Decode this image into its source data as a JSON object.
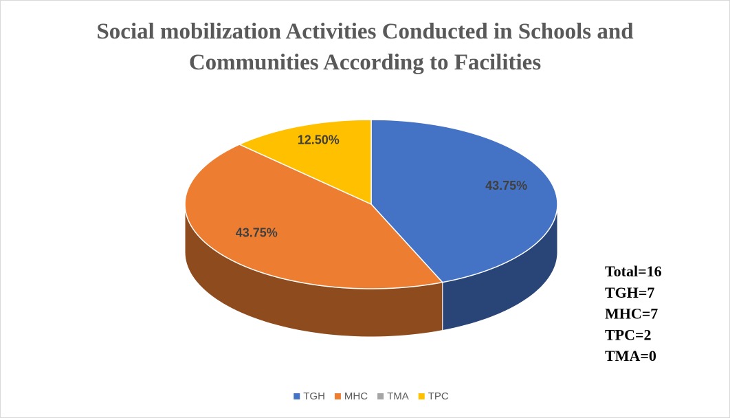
{
  "chart_data": {
    "type": "pie",
    "title": "Social mobilization Activities Conducted in Schools and Communities According to Facilities",
    "categories": [
      "TGH",
      "MHC",
      "TMA",
      "TPC"
    ],
    "values": [
      43.75,
      43.75,
      0,
      12.5
    ],
    "value_labels": [
      "43.75%",
      "43.75%",
      null,
      "12.50%"
    ],
    "colors": [
      "#4472c4",
      "#ed7d31",
      "#a5a5a5",
      "#ffc000"
    ],
    "annotations": [
      "Total=16",
      "TGH=7",
      "MHC=7",
      "TPC=2",
      "TMA=0"
    ],
    "legend": "bottom"
  }
}
